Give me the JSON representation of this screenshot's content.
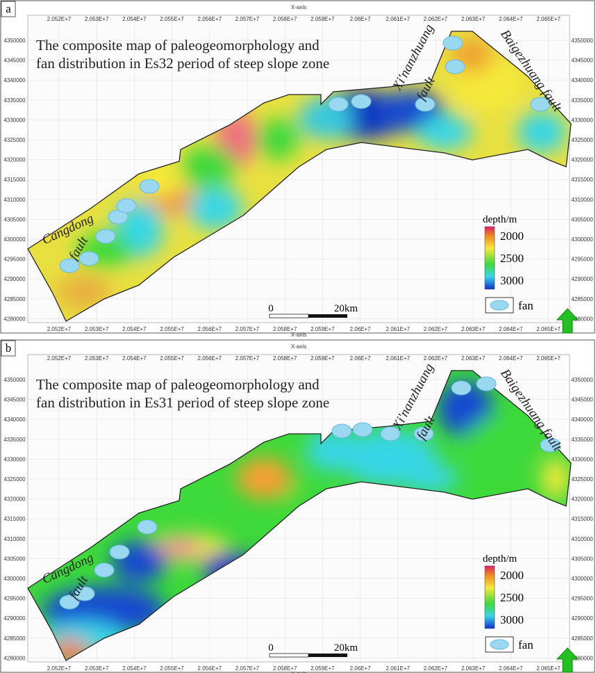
{
  "x_axis_label": "X-axis",
  "x_ticks": [
    "2.052E+7",
    "2.053E+7",
    "2.054E+7",
    "2.055E+7",
    "2.056E+7",
    "2.057E+7",
    "2.058E+7",
    "2.059E+7",
    "2.06E+7",
    "2.061E+7",
    "2.062E+7",
    "2.063E+7",
    "2.064E+7",
    "2.065E+7"
  ],
  "y_ticks": [
    4350000,
    4345000,
    4340000,
    4335000,
    4330000,
    4325000,
    4320000,
    4315000,
    4310000,
    4305000,
    4300000,
    4295000,
    4290000,
    4285000,
    4280000
  ],
  "panels": [
    {
      "label": "a",
      "title": [
        "The composite map of paleogeomorphology and",
        "fan distribution in Es32 period of steep slope zone"
      ]
    },
    {
      "label": "b",
      "title": [
        "The composite map of paleogeomorphology and",
        "fan distribution in Es31 period of steep slope zone"
      ]
    }
  ],
  "faults": {
    "cangdong": [
      "Cangdong",
      "fault"
    ],
    "xinanzhuang": [
      "Xi'nanzhuang",
      "fault"
    ],
    "baigezhuang": "Baigezhuang fault"
  },
  "legend": {
    "title": "depth/m",
    "values": [
      "2000",
      "2500",
      "3000"
    ],
    "scale": [
      "0",
      "20km"
    ],
    "fan": "fan"
  }
}
